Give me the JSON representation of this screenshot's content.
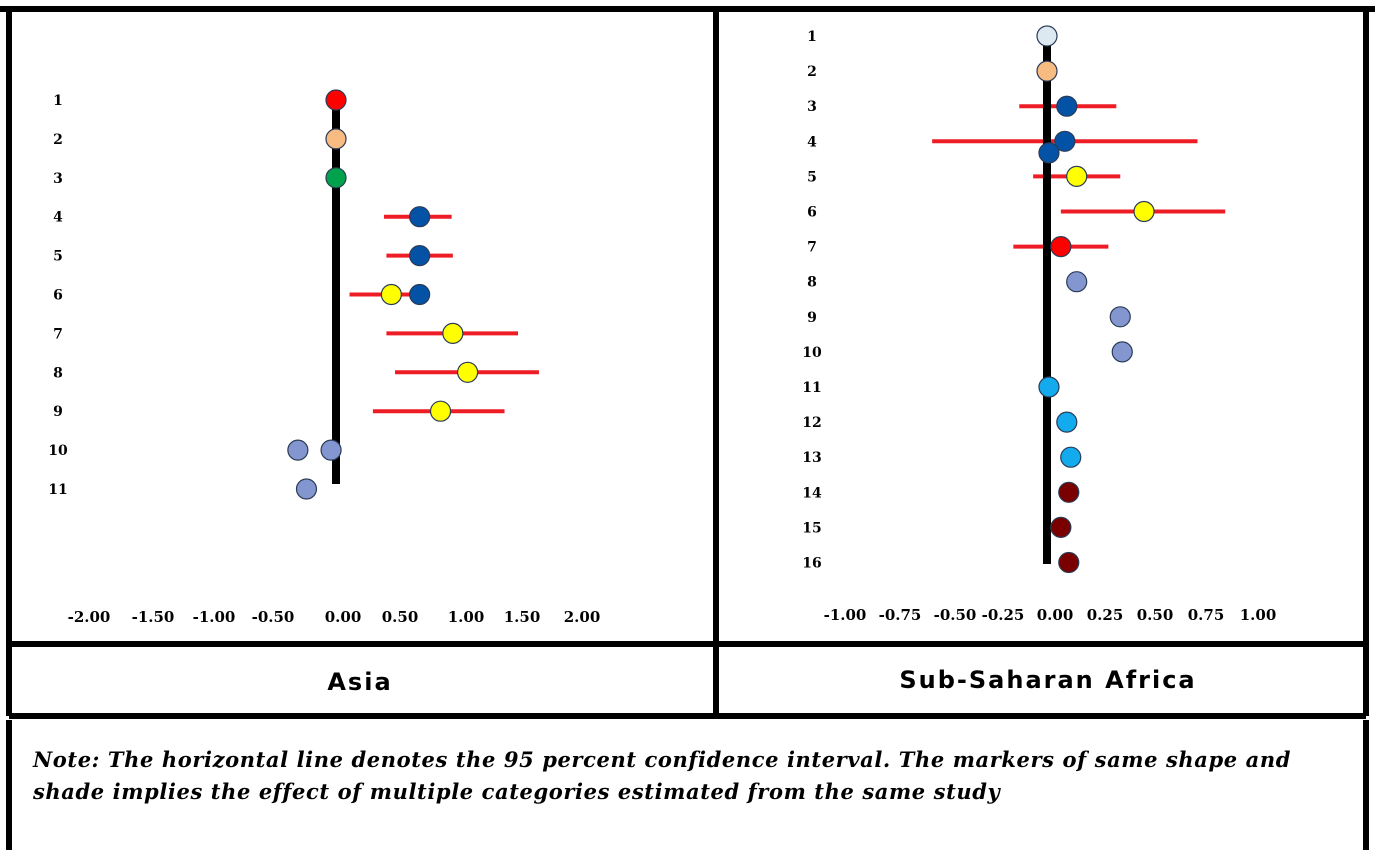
{
  "chart_data": [
    {
      "type": "scatter",
      "panel_label": "Asia",
      "x_ticks": [
        "-2.00",
        "-1.50",
        "-1.00",
        "-0.50",
        "0.00",
        "0.50",
        "1.00",
        "1.50",
        "2.00"
      ],
      "row_labels": [
        "1",
        "2",
        "3",
        "4",
        "5",
        "6",
        "7",
        "8",
        "9",
        "10",
        "11"
      ],
      "points": [
        {
          "row": 1,
          "x": 0.0,
          "color": "#ff0000"
        },
        {
          "row": 2,
          "x": 0.0,
          "color": "#f8bb82"
        },
        {
          "row": 3,
          "x": 0.0,
          "color": "#00a24b"
        },
        {
          "row": 4,
          "x": 0.68,
          "ci": [
            0.39,
            0.94
          ],
          "color": "#0452a5"
        },
        {
          "row": 5,
          "x": 0.68,
          "ci": [
            0.41,
            0.95
          ],
          "color": "#0452a5"
        },
        {
          "row": 6,
          "x": 0.45,
          "ci": [
            0.11,
            0.75
          ],
          "color": "#ffff00"
        },
        {
          "row": 6,
          "x": 0.68,
          "color": "#0452a5"
        },
        {
          "row": 7,
          "x": 0.95,
          "ci": [
            0.41,
            1.48
          ],
          "color": "#ffff00"
        },
        {
          "row": 8,
          "x": 1.07,
          "ci": [
            0.48,
            1.65
          ],
          "color": "#ffff00"
        },
        {
          "row": 9,
          "x": 0.85,
          "ci": [
            0.3,
            1.37
          ],
          "color": "#ffff00"
        },
        {
          "row": 10,
          "x": -0.31,
          "color": "#8496cf"
        },
        {
          "row": 10,
          "x": -0.04,
          "color": "#8496cf"
        },
        {
          "row": 11,
          "x": -0.24,
          "color": "#8496cf"
        }
      ]
    },
    {
      "type": "scatter",
      "panel_label": "Sub-Saharan Africa",
      "x_ticks": [
        "-1.00",
        "-0.75",
        "-0.50",
        "-0.25",
        "0.00",
        "0.25",
        "0.50",
        "0.75",
        "1.00"
      ],
      "row_labels": [
        "1",
        "2",
        "3",
        "4",
        "5",
        "6",
        "7",
        "8",
        "9",
        "10",
        "11",
        "12",
        "13",
        "14",
        "15",
        "16"
      ],
      "points": [
        {
          "row": 1,
          "x": 0.0,
          "color": "#dce9f0"
        },
        {
          "row": 2,
          "x": 0.0,
          "color": "#f8bb82"
        },
        {
          "row": 3,
          "x": 0.1,
          "ci": [
            -0.14,
            0.35
          ],
          "color": "#0452a5"
        },
        {
          "row": 4,
          "x": 0.09,
          "ci": [
            -0.58,
            0.76
          ],
          "color": "#0452a5"
        },
        {
          "row": 4.33,
          "x": 0.01,
          "color": "#0452a5"
        },
        {
          "row": 5,
          "x": 0.15,
          "ci": [
            -0.07,
            0.37
          ],
          "color": "#ffff00"
        },
        {
          "row": 6,
          "x": 0.49,
          "ci": [
            0.07,
            0.9
          ],
          "color": "#ffff00"
        },
        {
          "row": 7,
          "x": 0.07,
          "ci": [
            -0.17,
            0.31
          ],
          "color": "#ff0000"
        },
        {
          "row": 8,
          "x": 0.15,
          "color": "#8496cf"
        },
        {
          "row": 9,
          "x": 0.37,
          "color": "#8496cf"
        },
        {
          "row": 10,
          "x": 0.38,
          "color": "#8496cf"
        },
        {
          "row": 11,
          "x": 0.01,
          "color": "#13aaee"
        },
        {
          "row": 12,
          "x": 0.1,
          "color": "#13aaee"
        },
        {
          "row": 13,
          "x": 0.12,
          "color": "#13aaee"
        },
        {
          "row": 14,
          "x": 0.11,
          "color": "#7a0000"
        },
        {
          "row": 15,
          "x": 0.07,
          "color": "#7a0000"
        },
        {
          "row": 16,
          "x": 0.11,
          "color": "#7a0000"
        }
      ]
    }
  ],
  "note": {
    "line1": "Note: The horizontal line denotes the 95 percent confidence interval. The markers of same shape and",
    "line2": "shade implies the effect of multiple categories estimated from the same study"
  }
}
